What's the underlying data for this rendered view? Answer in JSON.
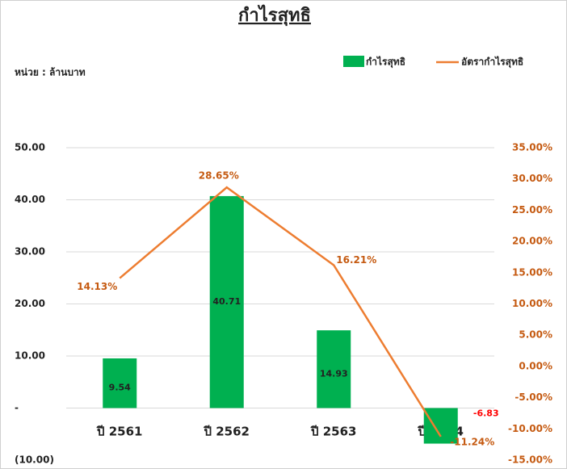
{
  "chart_data": {
    "type": "bar+line",
    "title": "กำไรสุทธิ",
    "unit_note": "หน่วย : ล้านบาท",
    "categories": [
      "ปี 2561",
      "ปี 2562",
      "ปี 2563",
      "ปี 2564"
    ],
    "series": [
      {
        "name": "กำไรสุทธิ",
        "type": "bar",
        "color": "#00b050",
        "values": [
          9.54,
          40.71,
          14.93,
          -6.83
        ]
      },
      {
        "name": "อัตรากำไรสุทธิ",
        "type": "line",
        "axis": "y2",
        "color": "#ed7d31",
        "values": [
          14.13,
          28.65,
          16.21,
          -11.24
        ],
        "value_labels": [
          "14.13%",
          "28.65%",
          "16.21%",
          "-11.24%"
        ]
      }
    ],
    "ylim": [
      -10,
      50
    ],
    "yticks": [
      {
        "value": -10,
        "label": "(10.00)"
      },
      {
        "value": 0,
        "label": "-"
      },
      {
        "value": 10,
        "label": "10.00"
      },
      {
        "value": 20,
        "label": "20.00"
      },
      {
        "value": 30,
        "label": "30.00"
      },
      {
        "value": 40,
        "label": "40.00"
      },
      {
        "value": 50,
        "label": "50.00"
      }
    ],
    "y2lim": [
      -15,
      35
    ],
    "y2ticks": [
      {
        "value": -15,
        "label": "-15.00%"
      },
      {
        "value": -10,
        "label": "-10.00%"
      },
      {
        "value": -5,
        "label": "-5.00%"
      },
      {
        "value": 0,
        "label": "0.00%"
      },
      {
        "value": 5,
        "label": "5.00%"
      },
      {
        "value": 10,
        "label": "10.00%"
      },
      {
        "value": 15,
        "label": "15.00%"
      },
      {
        "value": 20,
        "label": "20.00%"
      },
      {
        "value": 25,
        "label": "25.00%"
      },
      {
        "value": 30,
        "label": "30.00%"
      },
      {
        "value": 35,
        "label": "35.00%"
      }
    ],
    "grid": true,
    "legend": "top-right"
  }
}
